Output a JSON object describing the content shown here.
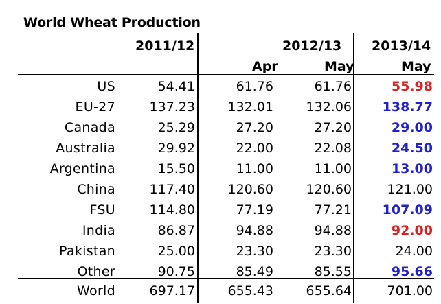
{
  "title": "World Wheat Production",
  "headers": {
    "col1": "2011/12",
    "col2_group": "2012/13",
    "col2a": "Apr",
    "col2b": "May",
    "col3_group": "2013/14",
    "col3a": "May"
  },
  "rows": [
    {
      "label": "US",
      "v1": "54.41",
      "v2": "61.76",
      "v3": "61.76",
      "v4": "55.98",
      "highlight": "red"
    },
    {
      "label": "EU-27",
      "v1": "137.23",
      "v2": "132.01",
      "v3": "132.06",
      "v4": "138.77",
      "highlight": "blue"
    },
    {
      "label": "Canada",
      "v1": "25.29",
      "v2": "27.20",
      "v3": "27.20",
      "v4": "29.00",
      "highlight": "blue"
    },
    {
      "label": "Australia",
      "v1": "29.92",
      "v2": "22.00",
      "v3": "22.08",
      "v4": "24.50",
      "highlight": "blue"
    },
    {
      "label": "Argentina",
      "v1": "15.50",
      "v2": "11.00",
      "v3": "11.00",
      "v4": "13.00",
      "highlight": "blue"
    },
    {
      "label": "China",
      "v1": "117.40",
      "v2": "120.60",
      "v3": "120.60",
      "v4": "121.00",
      "highlight": "none"
    },
    {
      "label": "FSU",
      "v1": "114.80",
      "v2": "77.19",
      "v3": "77.21",
      "v4": "107.09",
      "highlight": "blue"
    },
    {
      "label": "India",
      "v1": "86.87",
      "v2": "94.88",
      "v3": "94.88",
      "v4": "92.00",
      "highlight": "red"
    },
    {
      "label": "Pakistan",
      "v1": "25.00",
      "v2": "23.30",
      "v3": "23.30",
      "v4": "24.00",
      "highlight": "none"
    },
    {
      "label": "Other",
      "v1": "90.75",
      "v2": "85.49",
      "v3": "85.55",
      "v4": "95.66",
      "highlight": "blue"
    }
  ],
  "total": {
    "label": "World",
    "v1": "697.17",
    "v2": "655.43",
    "v3": "655.64",
    "v4": "701.00"
  },
  "colors": {
    "red": "#e02020",
    "blue": "#2020d0"
  }
}
